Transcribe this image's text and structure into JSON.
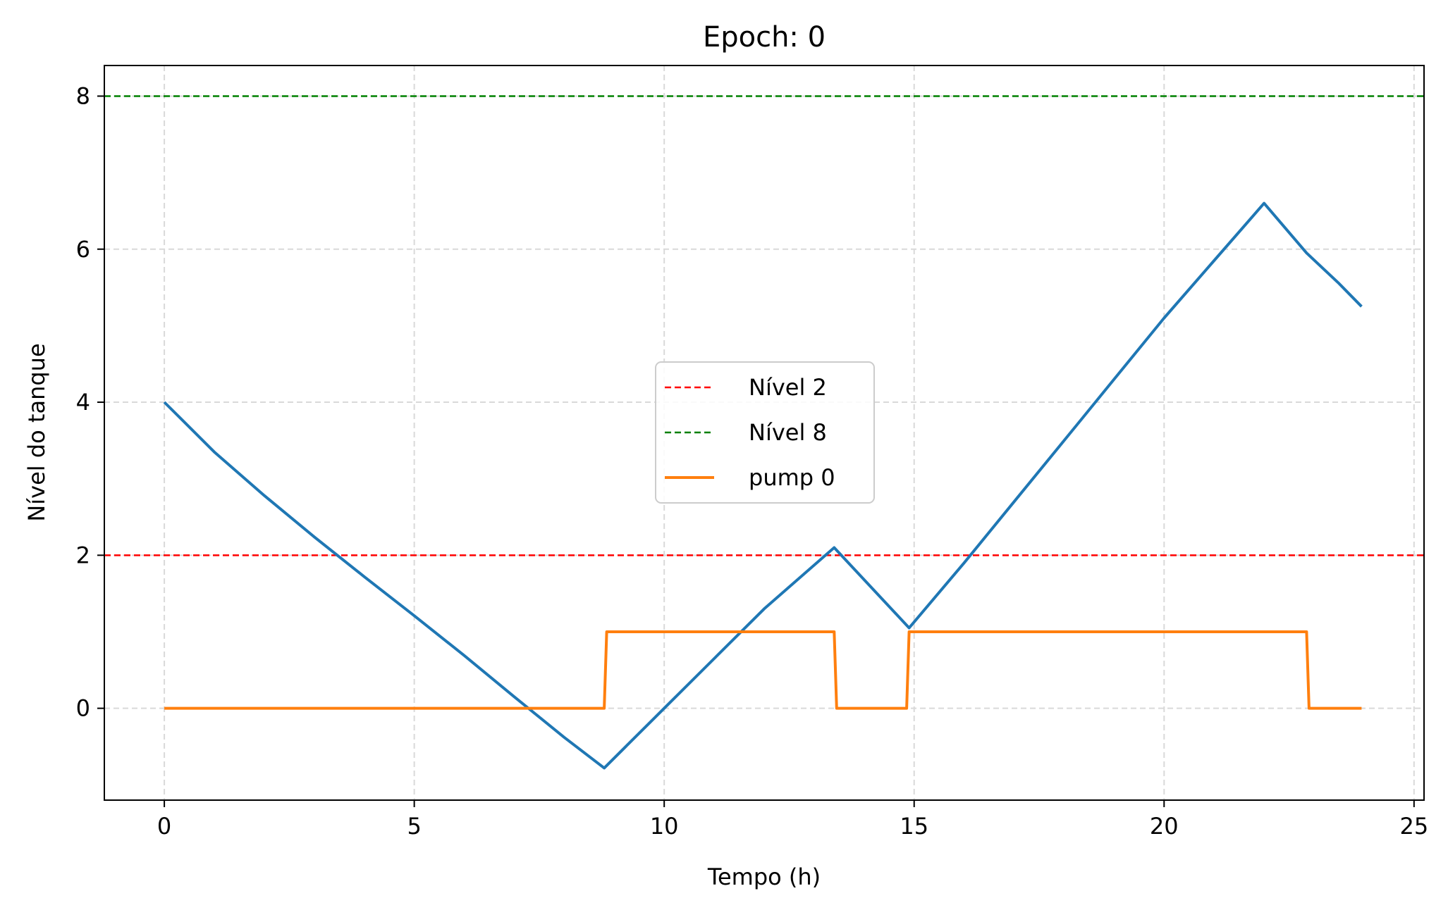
{
  "chart_data": {
    "type": "line",
    "title": "Epoch: 0",
    "xlabel": "Tempo (h)",
    "ylabel": "Nível do tanque",
    "xlim": [
      -1.2,
      25.2
    ],
    "ylim": [
      -1.2,
      8.4
    ],
    "xticks": [
      0,
      5,
      10,
      15,
      20,
      25
    ],
    "yticks": [
      0,
      2,
      4,
      6,
      8
    ],
    "grid": true,
    "legend_position": "center",
    "hlines": [
      {
        "name": "Nível 2",
        "y": 2,
        "color": "#ff0000",
        "style": "dashed"
      },
      {
        "name": "Nível 8",
        "y": 8,
        "color": "#008000",
        "style": "dashed"
      }
    ],
    "series": [
      {
        "color": "#1f77b4",
        "x": [
          0,
          1,
          2,
          3,
          4,
          5,
          6,
          7,
          8,
          8.8,
          10,
          11,
          12,
          13.4,
          14.9,
          16,
          17,
          18,
          19,
          20,
          21,
          22,
          22.85,
          23.5,
          23.95
        ],
        "y": [
          4.0,
          3.35,
          2.78,
          2.24,
          1.72,
          1.21,
          0.69,
          0.15,
          -0.38,
          -0.78,
          0.0,
          0.65,
          1.3,
          2.1,
          1.05,
          1.9,
          2.7,
          3.5,
          4.3,
          5.1,
          5.85,
          6.6,
          5.95,
          5.55,
          5.25
        ]
      },
      {
        "name": "pump 0",
        "color": "#ff7f0e",
        "x": [
          0,
          8.8,
          8.85,
          13.4,
          13.45,
          14.85,
          14.9,
          22.85,
          22.9,
          23.95
        ],
        "y": [
          0,
          0,
          1,
          1,
          0,
          0,
          1,
          1,
          0,
          0
        ]
      }
    ]
  }
}
